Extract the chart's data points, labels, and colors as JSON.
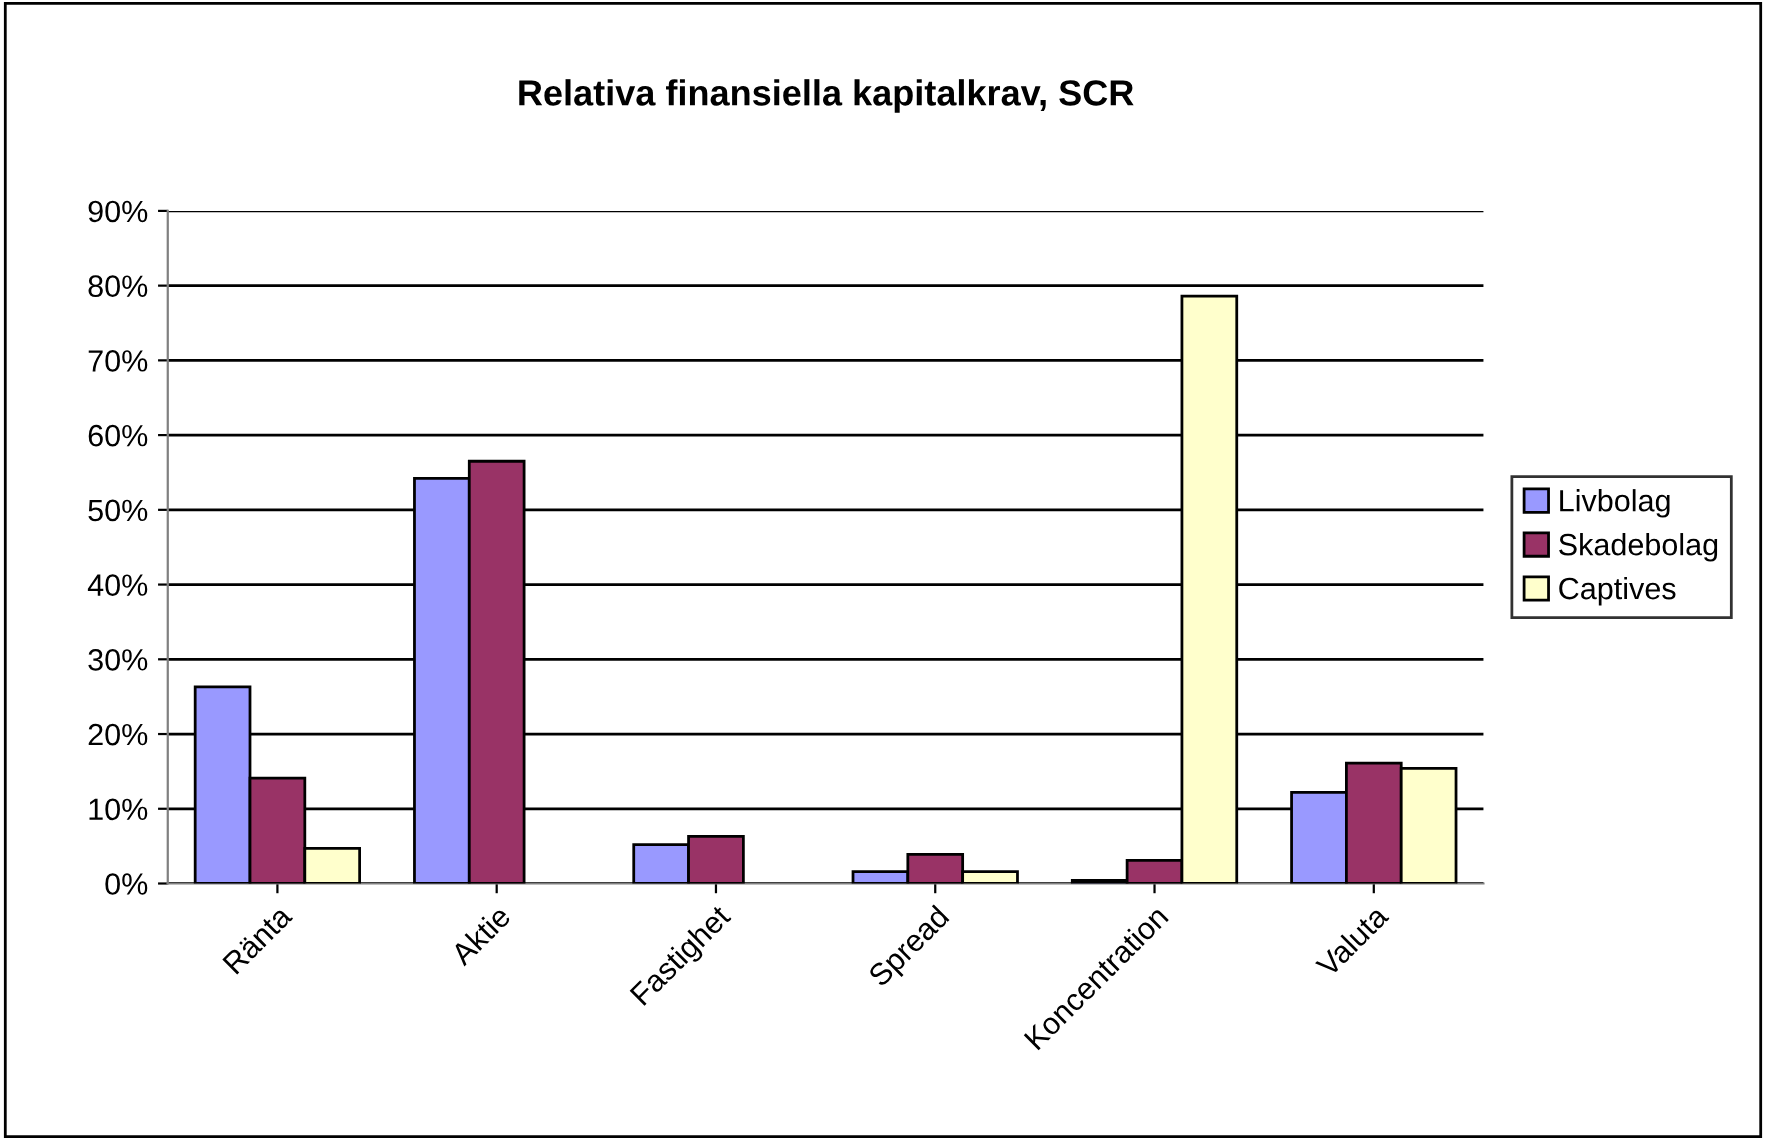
{
  "chart_data": {
    "type": "bar",
    "title": "Relativa finansiella kapitalkrav, SCR",
    "categories": [
      "Ränta",
      "Aktie",
      "Fastighet",
      "Spread",
      "Koncentration",
      "Valuta"
    ],
    "series": [
      {
        "name": "Livbolag",
        "color": "#9999ff",
        "values": [
          26.3,
          54.2,
          5.2,
          1.6,
          0.4,
          12.2
        ]
      },
      {
        "name": "Skadebolag",
        "color": "#993366",
        "values": [
          14.1,
          56.5,
          6.3,
          3.9,
          3.1,
          16.1
        ]
      },
      {
        "name": "Captives",
        "color": "#ffffcc",
        "values": [
          4.7,
          null,
          null,
          1.6,
          78.6,
          15.4
        ]
      }
    ],
    "ylim": [
      0,
      90
    ],
    "yticks": [
      {
        "value": 0,
        "label": "0%"
      },
      {
        "value": 10,
        "label": "10%"
      },
      {
        "value": 20,
        "label": "20%"
      },
      {
        "value": 30,
        "label": "30%"
      },
      {
        "value": 40,
        "label": "40%"
      },
      {
        "value": 50,
        "label": "50%"
      },
      {
        "value": 60,
        "label": "60%"
      },
      {
        "value": 70,
        "label": "70%"
      },
      {
        "value": 80,
        "label": "80%"
      },
      {
        "value": 90,
        "label": "90%"
      }
    ],
    "grid": "y",
    "legend": "right"
  }
}
